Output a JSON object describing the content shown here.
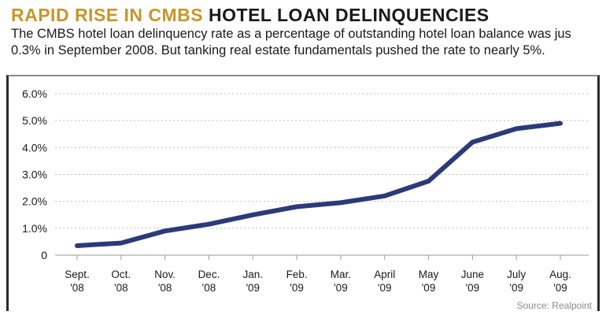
{
  "header": {
    "title_accent": "RAPID RISE IN CMBS",
    "title_main": "HOTEL LOAN DELINQUENCIES",
    "subtitle_line1": "The CMBS hotel loan delinquency rate as a percentage of outstanding hotel loan balance was jus",
    "subtitle_line2": "0.3% in September 2008. But tanking real estate fundamentals pushed the rate to nearly 5%."
  },
  "source": "Source: Realpoint",
  "colors": {
    "accent": "#c8962a",
    "line": "#2c3a78",
    "grid": "#bdbdbd",
    "text": "#1a1a1a"
  },
  "chart_data": {
    "type": "line",
    "title": "RAPID RISE IN CMBS HOTEL LOAN DELINQUENCIES",
    "xlabel": "",
    "ylabel": "",
    "ylim": [
      0,
      6
    ],
    "grid": true,
    "y_ticks": [
      {
        "value": 0,
        "label": "0"
      },
      {
        "value": 1,
        "label": "1.0%"
      },
      {
        "value": 2,
        "label": "2.0%"
      },
      {
        "value": 3,
        "label": "3.0%"
      },
      {
        "value": 4,
        "label": "4.0%"
      },
      {
        "value": 5,
        "label": "5.0%"
      },
      {
        "value": 6,
        "label": "6.0%"
      }
    ],
    "categories": [
      [
        "Sept.",
        "'08"
      ],
      [
        "Oct.",
        "'08"
      ],
      [
        "Nov.",
        "'08"
      ],
      [
        "Dec.",
        "'08"
      ],
      [
        "Jan.",
        "'09"
      ],
      [
        "Feb.",
        "'09"
      ],
      [
        "Mar.",
        "'09"
      ],
      [
        "April",
        "'09"
      ],
      [
        "May",
        "'09"
      ],
      [
        "June",
        "'09"
      ],
      [
        "July",
        "'09"
      ],
      [
        "Aug.",
        "'09"
      ]
    ],
    "series": [
      {
        "values": [
          0.35,
          0.45,
          0.9,
          1.15,
          1.5,
          1.8,
          1.95,
          2.2,
          2.75,
          4.2,
          4.7,
          4.9
        ]
      }
    ]
  }
}
